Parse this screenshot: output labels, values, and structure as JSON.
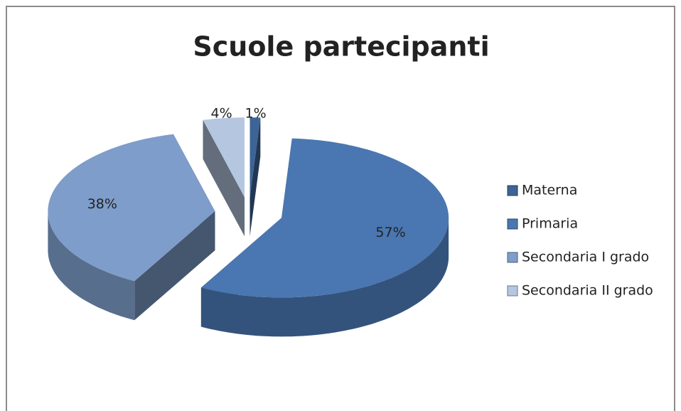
{
  "chart_data": {
    "type": "pie",
    "title": "Scuole partecipanti",
    "categories": [
      "Materna",
      "Primaria",
      "Secondaria I grado",
      "Secondaria II grado"
    ],
    "values": [
      1,
      57,
      38,
      4
    ],
    "value_labels": [
      "1%",
      "57%",
      "38%",
      "4%"
    ],
    "colors": [
      "#3c6496",
      "#4a77b1",
      "#7e9dca",
      "#b5c6e1"
    ],
    "legend": "right"
  }
}
